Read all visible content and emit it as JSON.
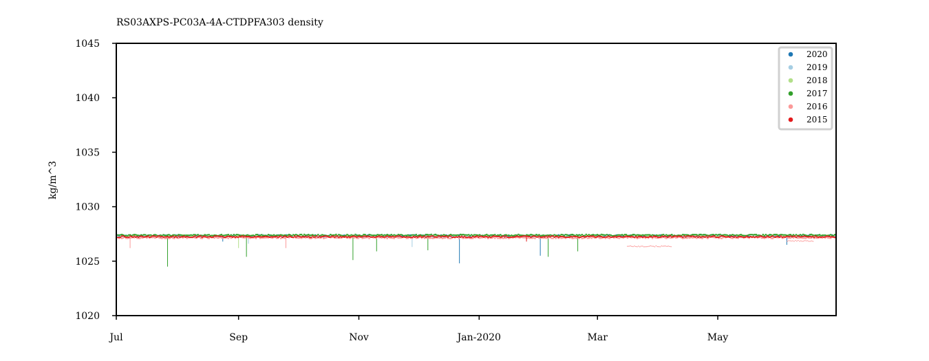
{
  "chart_data": {
    "type": "scatter",
    "title": "RS03AXPS-PC03A-4A-CTDPFA303 density",
    "ylabel": "kg/m^3",
    "xlabel": "",
    "ylim": [
      1020,
      1045
    ],
    "xlim": [
      "2019-07-01",
      "2020-06-30"
    ],
    "y_ticks": [
      1020,
      1025,
      1030,
      1035,
      1040,
      1045
    ],
    "x_ticks": [
      {
        "date": "2019-07-01",
        "label": "Jul"
      },
      {
        "date": "2019-09-01",
        "label": "Sep"
      },
      {
        "date": "2019-11-01",
        "label": "Nov"
      },
      {
        "date": "2020-01-01",
        "label": "Jan-2020"
      },
      {
        "date": "2020-03-01",
        "label": "Mar"
      },
      {
        "date": "2020-05-01",
        "label": "May"
      }
    ],
    "grid": false,
    "legend_position": "top-right",
    "series": [
      {
        "name": "2020",
        "color": "#1f78b4",
        "level": 1027.4,
        "spikes": [
          [
            "2019-08-24",
            1026.8
          ],
          [
            "2019-12-22",
            1024.8
          ],
          [
            "2020-02-01",
            1025.5
          ],
          [
            "2020-06-05",
            1026.5
          ]
        ]
      },
      {
        "name": "2019",
        "color": "#a6cee3",
        "level": 1027.3,
        "spikes": [
          [
            "2019-09-06",
            1026.6
          ],
          [
            "2019-11-28",
            1026.3
          ]
        ]
      },
      {
        "name": "2018",
        "color": "#b2df8a",
        "level": 1027.4,
        "spikes": [
          [
            "2019-09-01",
            1026.2
          ]
        ]
      },
      {
        "name": "2017",
        "color": "#33a02c",
        "level": 1027.45,
        "spikes": [
          [
            "2019-07-27",
            1024.5
          ],
          [
            "2019-09-05",
            1025.4
          ],
          [
            "2019-10-29",
            1025.1
          ],
          [
            "2019-11-10",
            1025.9
          ],
          [
            "2019-12-06",
            1026.0
          ],
          [
            "2020-02-05",
            1025.4
          ],
          [
            "2020-02-20",
            1025.9
          ]
        ]
      },
      {
        "name": "2016",
        "color": "#fb9a99",
        "level": 1027.2,
        "segments": [
          {
            "from": "2020-03-16",
            "to": "2020-04-07",
            "value": 1026.4
          },
          {
            "from": "2020-06-05",
            "to": "2020-06-18",
            "value": 1026.9
          }
        ],
        "spikes": [
          [
            "2019-09-25",
            1026.2
          ],
          [
            "2019-07-08",
            1026.2
          ]
        ]
      },
      {
        "name": "2015",
        "color": "#e31a1c",
        "level": 1027.3,
        "spikes": [
          [
            "2020-01-25",
            1026.8
          ]
        ]
      }
    ]
  }
}
